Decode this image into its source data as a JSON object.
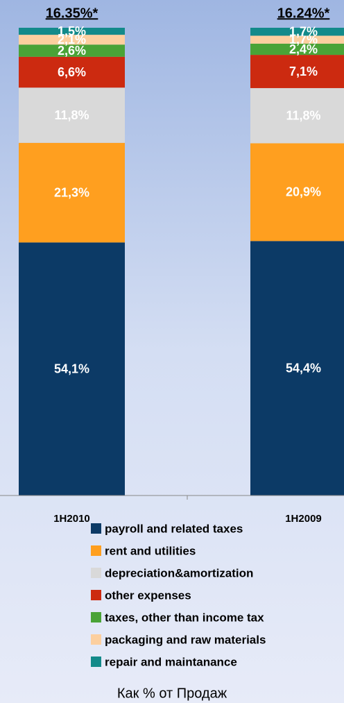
{
  "chart_data": {
    "type": "stacked_bar",
    "annotations": [
      "16.35%*",
      "16.24%*"
    ],
    "categories": [
      "1H2010",
      "1H2009"
    ],
    "xlabel": "Как % от Продаж",
    "ylim": [
      0,
      100
    ],
    "series": [
      {
        "name": "payroll and related taxes",
        "color": "#0c3a66",
        "values": [
          54.1,
          54.4
        ],
        "value_labels": [
          "54,1%",
          "54,4%"
        ]
      },
      {
        "name": "rent and utilities",
        "color": "#ff9f1f",
        "values": [
          21.3,
          20.9
        ],
        "value_labels": [
          "21,3%",
          "20,9%"
        ]
      },
      {
        "name": "depreciation&amortization",
        "color": "#d9d9d9",
        "values": [
          11.8,
          11.8
        ],
        "value_labels": [
          "11,8%",
          "11,8%"
        ]
      },
      {
        "name": "other expenses",
        "color": "#cc2a10",
        "values": [
          6.6,
          7.1
        ],
        "value_labels": [
          "6,6%",
          "7,1%"
        ]
      },
      {
        "name": "taxes, other than income tax",
        "color": "#4aa337",
        "values": [
          2.6,
          2.4
        ],
        "value_labels": [
          "2,6%",
          "2,4%"
        ]
      },
      {
        "name": "packaging and raw materials",
        "color": "#fccf9f",
        "values": [
          2.1,
          1.7
        ],
        "value_labels": [
          "2,1%",
          "1,7%"
        ]
      },
      {
        "name": "repair and maintanance",
        "color": "#138a8a",
        "values": [
          1.5,
          1.7
        ],
        "value_labels": [
          "1,5%",
          "1,7%"
        ]
      }
    ]
  }
}
